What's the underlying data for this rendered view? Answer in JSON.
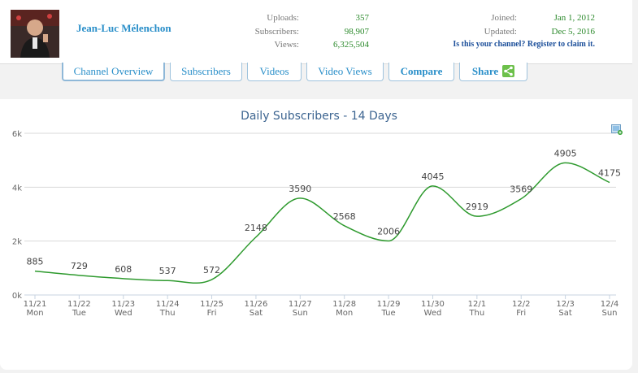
{
  "channel": {
    "name": "Jean-Luc Mélenchon",
    "uploads_label": "Uploads:",
    "uploads": "357",
    "subscribers_label": "Subscribers:",
    "subscribers": "98,907",
    "views_label": "Views:",
    "views": "6,325,504",
    "joined_label": "Joined:",
    "joined": "Jan 1, 2012",
    "updated_label": "Updated:",
    "updated": "Dec 5, 2016",
    "claim_link": "Is this your channel? Register to claim it."
  },
  "tabs": [
    {
      "label": "Channel Overview"
    },
    {
      "label": "Subscribers"
    },
    {
      "label": "Videos"
    },
    {
      "label": "Video Views"
    },
    {
      "label": "Compare"
    },
    {
      "label": "Share"
    }
  ],
  "colors": {
    "line": "#2e9a2e",
    "title": "#3d6591",
    "link": "#2a8fc9",
    "stat_value": "#2c8a2c"
  },
  "chart_data": {
    "type": "line",
    "title": "Daily Subscribers - 14 Days",
    "categories": [
      "11/21",
      "11/22",
      "11/23",
      "11/24",
      "11/25",
      "11/26",
      "11/27",
      "11/28",
      "11/29",
      "11/30",
      "12/1",
      "12/2",
      "12/3",
      "12/4"
    ],
    "weekdays": [
      "Mon",
      "Tue",
      "Wed",
      "Thu",
      "Fri",
      "Sat",
      "Sun",
      "Mon",
      "Tue",
      "Wed",
      "Thu",
      "Fri",
      "Sat",
      "Sun"
    ],
    "series": [
      {
        "values": [
          885,
          729,
          608,
          537,
          572,
          2148,
          3590,
          2568,
          2006,
          4045,
          2919,
          3569,
          4905,
          4175
        ]
      }
    ],
    "yticks": [
      "0k",
      "2k",
      "4k",
      "6k"
    ],
    "ylim": [
      0,
      6000
    ],
    "grid": true,
    "legend": "none"
  }
}
